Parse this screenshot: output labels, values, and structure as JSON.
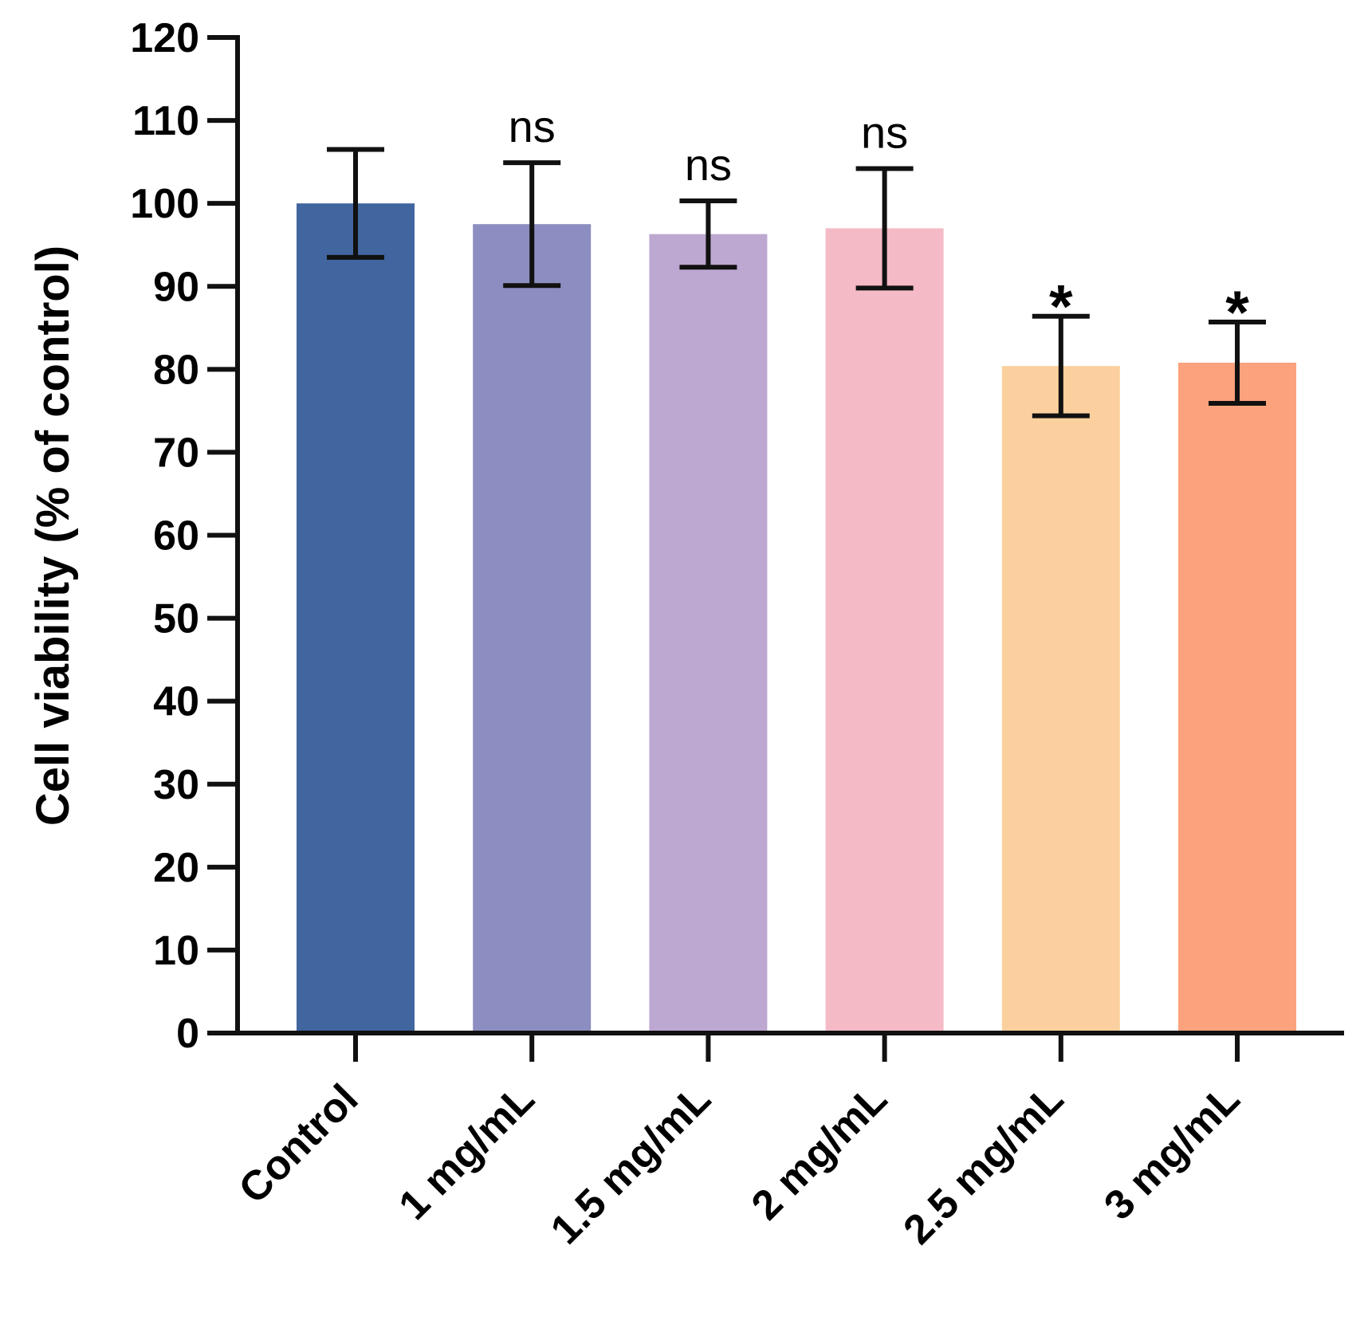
{
  "chart_data": {
    "type": "bar",
    "title": "",
    "xlabel": "",
    "ylabel": "Cell viability (% of control)",
    "ylim": [
      0,
      120
    ],
    "yticks": [
      0,
      10,
      20,
      30,
      40,
      50,
      60,
      70,
      80,
      90,
      100,
      110,
      120
    ],
    "ytick_labels": [
      "0",
      "10",
      "20",
      "30",
      "40",
      "50",
      "60",
      "70",
      "80",
      "90",
      "100",
      "110",
      "120"
    ],
    "grid": false,
    "categories": [
      "Control",
      "1 mg/mL",
      "1.5 mg/mL",
      "2 mg/mL",
      "2.5 mg/mL",
      "3 mg/mL"
    ],
    "values": [
      100.0,
      97.5,
      96.3,
      97.0,
      80.4,
      80.8
    ],
    "error": [
      6.5,
      7.4,
      4.0,
      7.2,
      6.0,
      4.9
    ],
    "annotations": [
      "",
      "ns",
      "ns",
      "ns",
      "*",
      "*"
    ],
    "colors": [
      "#41659F",
      "#8C8DC1",
      "#BDA8D1",
      "#F4BAC6",
      "#FCD09E",
      "#FCA27D"
    ]
  }
}
